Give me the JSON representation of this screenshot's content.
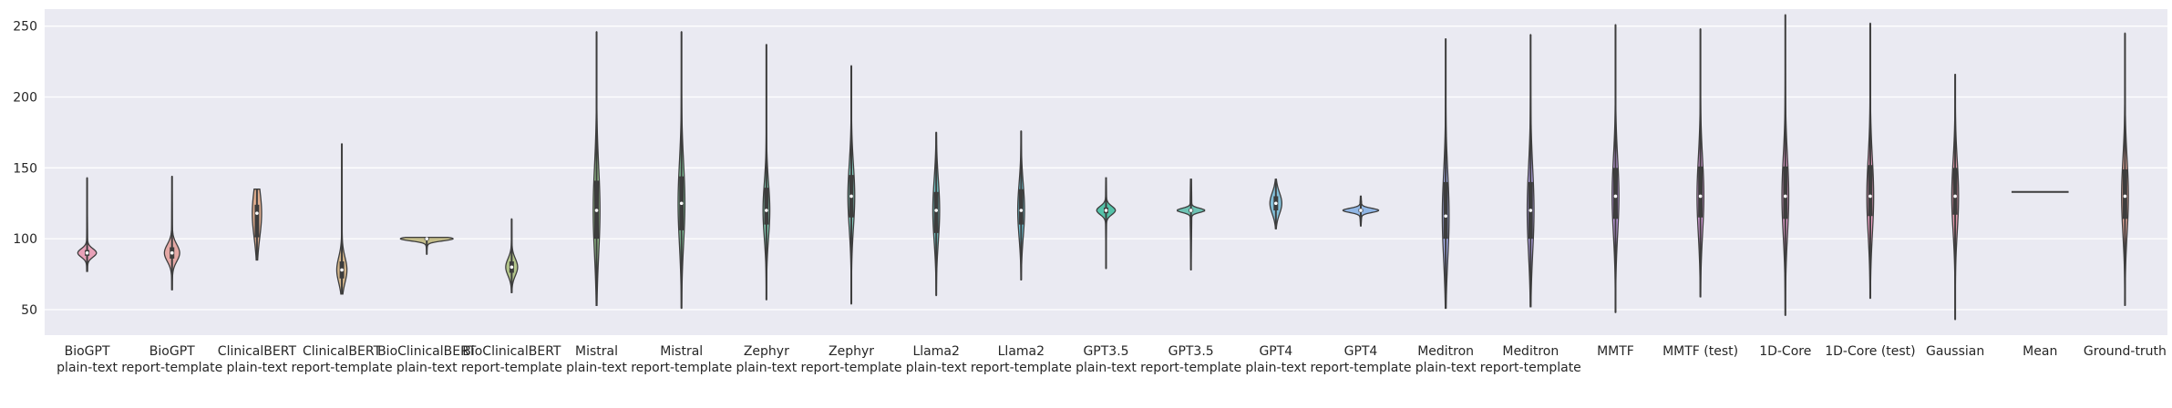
{
  "chart_data": {
    "type": "violin",
    "title": "",
    "xlabel": "",
    "ylabel": "",
    "ylim": [
      32,
      262
    ],
    "yticks": [
      50,
      100,
      150,
      200,
      250
    ],
    "grid": true,
    "categories": [
      {
        "line1": "BioGPT",
        "line2": "plain-text",
        "color": "#e8a1b8",
        "min": 77,
        "q1": 88,
        "median": 90,
        "q3": 92,
        "max": 143,
        "spread": 0.22
      },
      {
        "line1": "BioGPT",
        "line2": "report-template",
        "color": "#e4a8a5",
        "min": 64,
        "q1": 86,
        "median": 90,
        "q3": 94,
        "max": 144,
        "spread": 0.18
      },
      {
        "line1": "ClinicalBERT",
        "line2": "plain-text",
        "color": "#dfad8f",
        "min": 85,
        "q1": 101,
        "median": 118,
        "q3": 124,
        "max": 135,
        "spread": 0.11
      },
      {
        "line1": "ClinicalBERT",
        "line2": "report-template",
        "color": "#d3b58b",
        "min": 61,
        "q1": 72,
        "median": 78,
        "q3": 84,
        "max": 167,
        "spread": 0.12
      },
      {
        "line1": "BioClinicalBERT",
        "line2": "plain-text",
        "color": "#c4bd8a",
        "min": 89,
        "q1": 99,
        "median": 100,
        "q3": 101,
        "max": 101,
        "spread": 0.62
      },
      {
        "line1": "BioClinicalBERT",
        "line2": "report-template",
        "color": "#b2c48a",
        "min": 62,
        "q1": 76,
        "median": 80,
        "q3": 84,
        "max": 114,
        "spread": 0.14
      },
      {
        "line1": "Mistral",
        "line2": "plain-text",
        "color": "#9ac890",
        "min": 53,
        "q1": 100,
        "median": 120,
        "q3": 141,
        "max": 246,
        "spread": 0.08
      },
      {
        "line1": "Mistral",
        "line2": "report-template",
        "color": "#87cba1",
        "min": 51,
        "q1": 106,
        "median": 125,
        "q3": 144,
        "max": 246,
        "spread": 0.08
      },
      {
        "line1": "Zephyr",
        "line2": "plain-text",
        "color": "#7fcbb1",
        "min": 57,
        "q1": 110,
        "median": 120,
        "q3": 136,
        "max": 237,
        "spread": 0.08
      },
      {
        "line1": "Zephyr",
        "line2": "report-template",
        "color": "#80c9bd",
        "min": 54,
        "q1": 115,
        "median": 130,
        "q3": 145,
        "max": 222,
        "spread": 0.08
      },
      {
        "line1": "Llama2",
        "line2": "plain-text",
        "color": "#72c4c6",
        "min": 60,
        "q1": 104,
        "median": 120,
        "q3": 133,
        "max": 175,
        "spread": 0.08
      },
      {
        "line1": "Llama2",
        "line2": "report-template",
        "color": "#6ec1d2",
        "min": 71,
        "q1": 110,
        "median": 120,
        "q3": 135,
        "max": 176,
        "spread": 0.08
      },
      {
        "line1": "GPT3.5",
        "line2": "plain-text",
        "color": "#54c2a9",
        "min": 79,
        "q1": 118,
        "median": 120,
        "q3": 122,
        "max": 143,
        "spread": 0.22
      },
      {
        "line1": "GPT3.5",
        "line2": "report-template",
        "color": "#6dc3b4",
        "min": 78,
        "q1": 119,
        "median": 120,
        "q3": 121,
        "max": 142,
        "spread": 0.32
      },
      {
        "line1": "GPT4",
        "line2": "plain-text",
        "color": "#83bfd8",
        "min": 107,
        "q1": 120,
        "median": 125,
        "q3": 130,
        "max": 142,
        "spread": 0.14
      },
      {
        "line1": "GPT4",
        "line2": "report-template",
        "color": "#91b7e6",
        "min": 109,
        "q1": 119,
        "median": 120,
        "q3": 121,
        "max": 130,
        "spread": 0.42
      },
      {
        "line1": "Meditron",
        "line2": "plain-text",
        "color": "#a5aeec",
        "min": 51,
        "q1": 100,
        "median": 116,
        "q3": 140,
        "max": 241,
        "spread": 0.08
      },
      {
        "line1": "Meditron",
        "line2": "report-template",
        "color": "#b7a6ed",
        "min": 52,
        "q1": 100,
        "median": 120,
        "q3": 140,
        "max": 244,
        "spread": 0.08
      },
      {
        "line1": "MMTF",
        "line2": "",
        "color": "#c79fe9",
        "min": 48,
        "q1": 114,
        "median": 130,
        "q3": 150,
        "max": 251,
        "spread": 0.08
      },
      {
        "line1": "MMTF (test)",
        "line2": "",
        "color": "#d89ddc",
        "min": 59,
        "q1": 115,
        "median": 130,
        "q3": 151,
        "max": 248,
        "spread": 0.08
      },
      {
        "line1": "1D-Core",
        "line2": "",
        "color": "#e39ccd",
        "min": 46,
        "q1": 114,
        "median": 130,
        "q3": 151,
        "max": 258,
        "spread": 0.08
      },
      {
        "line1": "1D-Core (test)",
        "line2": "",
        "color": "#ea9ec1",
        "min": 58,
        "q1": 116,
        "median": 130,
        "q3": 152,
        "max": 252,
        "spread": 0.08
      },
      {
        "line1": "Gaussian",
        "line2": "",
        "color": "#eda0b4",
        "min": 43,
        "q1": 117,
        "median": 130,
        "q3": 150,
        "max": 216,
        "spread": 0.08
      },
      {
        "line1": "Mean",
        "line2": "",
        "color": "#eca5a8",
        "min": 133,
        "q1": 133,
        "median": 133,
        "q3": 133,
        "max": 133,
        "spread": 0.42
      },
      {
        "line1": "Ground-truth",
        "line2": "",
        "color": "#e9aa9c",
        "min": 53,
        "q1": 114,
        "median": 130,
        "q3": 149,
        "max": 245,
        "spread": 0.08
      }
    ]
  }
}
